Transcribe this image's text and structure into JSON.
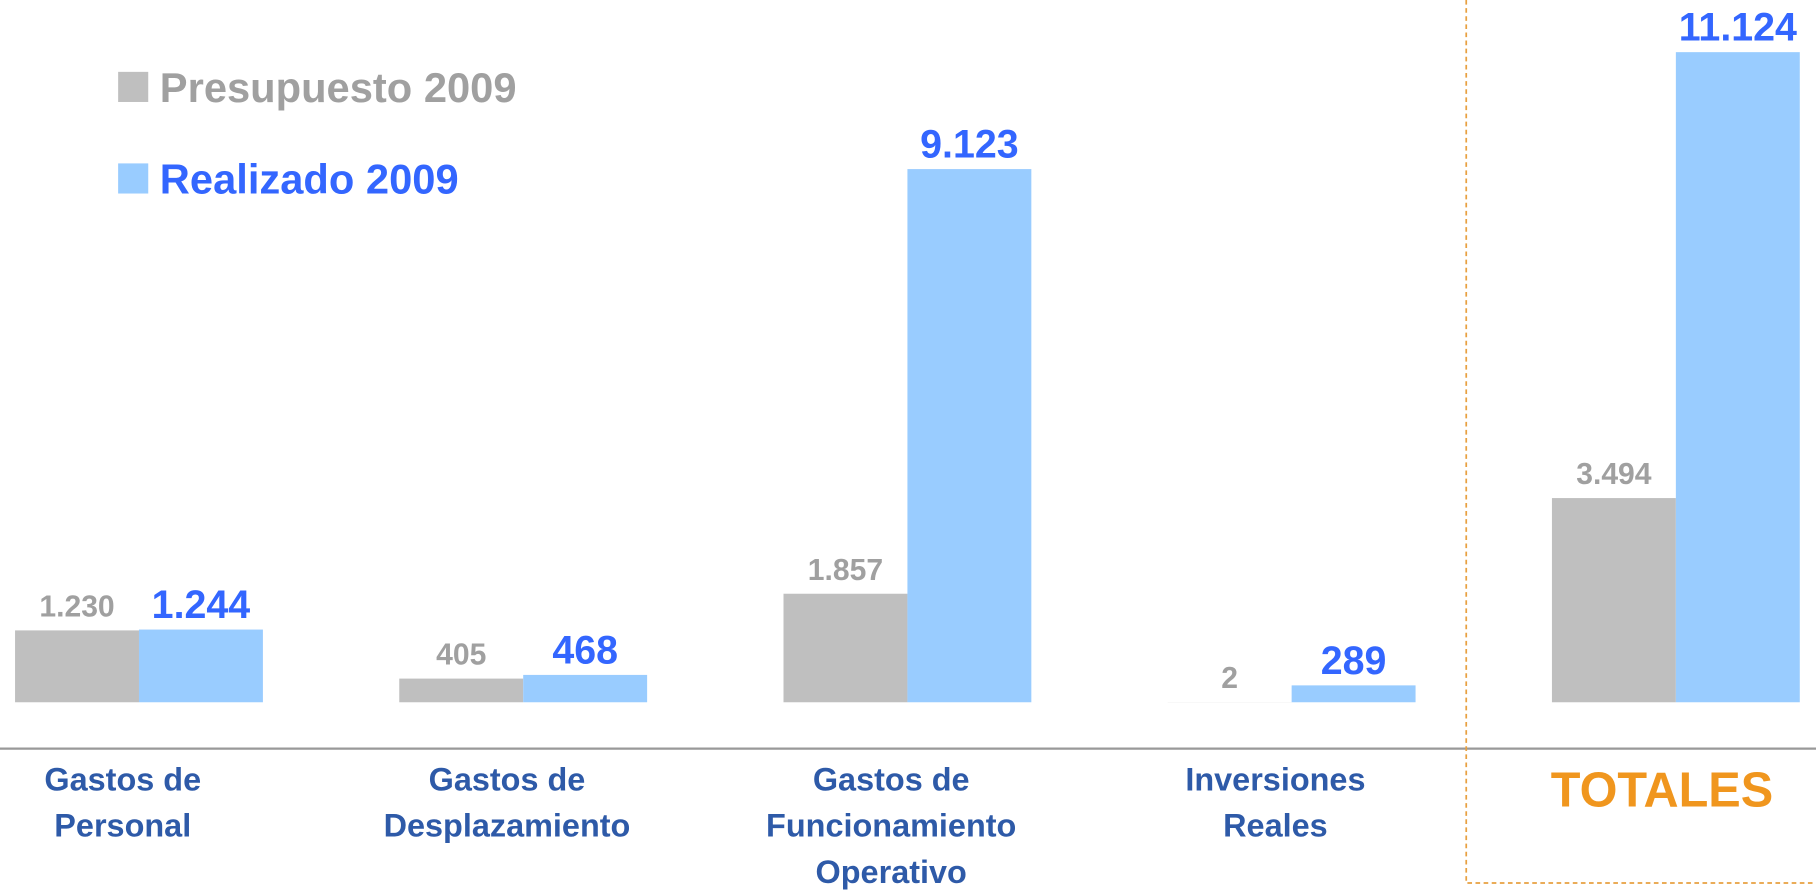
{
  "chart_data": {
    "type": "bar",
    "categories": [
      "Gastos de\nPersonal",
      "Gastos de\nDesplazamiento",
      "Gastos de\nFuncionamiento\nOperativo",
      "Inversiones\nReales",
      "TOTALES"
    ],
    "series": [
      {
        "name": "Presupuesto 2009",
        "color": "#bfbfbf",
        "values": [
          1230,
          405,
          1857,
          2,
          3494
        ],
        "value_labels": [
          "1.230",
          "405",
          "1.857",
          "2",
          "3.494"
        ]
      },
      {
        "name": "Realizado 2009",
        "color": "#99ccff",
        "values": [
          1244,
          468,
          9123,
          289,
          11124
        ],
        "value_labels": [
          "1.244",
          "468",
          "9.123",
          "289",
          "11.124"
        ]
      }
    ],
    "ylim": [
      0,
      11124
    ]
  }
}
